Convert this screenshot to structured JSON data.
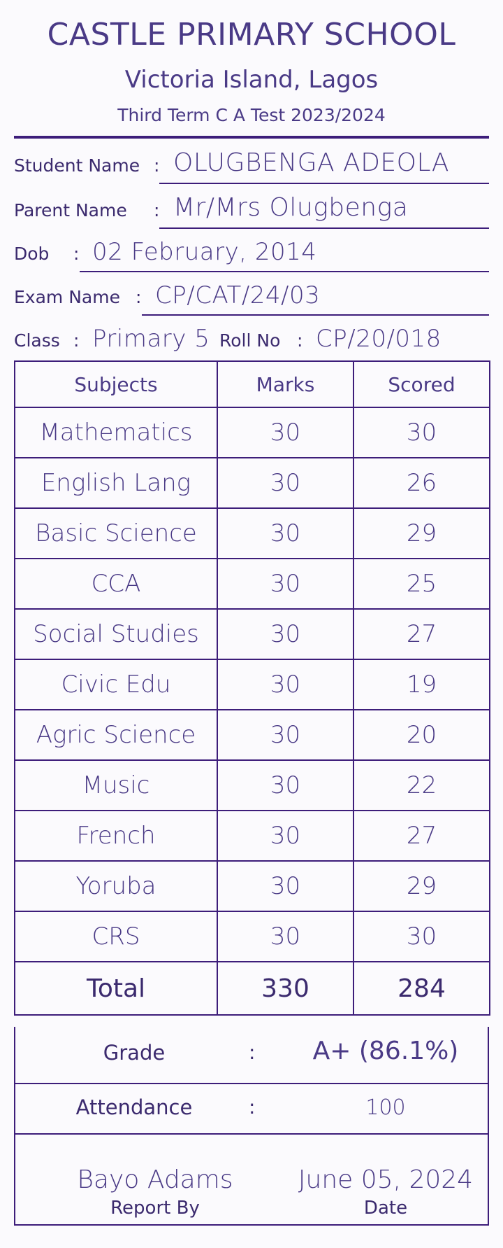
{
  "header": {
    "school_name": "CASTLE PRIMARY SCHOOL",
    "location": "Victoria Island, Lagos",
    "exam_title": "Third Term C A Test 2023/2024"
  },
  "student_info": {
    "student_name_label": "Student Name",
    "student_name": "OLUGBENGA ADEOLA",
    "parent_name_label": "Parent Name",
    "parent_name": "Mr/Mrs Olugbenga",
    "dob_label": "Dob",
    "dob": "02 February, 2014",
    "exam_name_label": "Exam Name",
    "exam_name": "CP/CAT/24/03",
    "class_label": "Class",
    "class_value": "Primary 5",
    "roll_no_label": "Roll No",
    "roll_no": "CP/20/018",
    "colon": ":"
  },
  "marks_table": {
    "headers": [
      "Subjects",
      "Marks",
      "Scored"
    ],
    "rows": [
      {
        "subject": "Mathematics",
        "marks": "30",
        "scored": "30"
      },
      {
        "subject": "English Lang",
        "marks": "30",
        "scored": "26"
      },
      {
        "subject": "Basic Science",
        "marks": "30",
        "scored": "29"
      },
      {
        "subject": "CCA",
        "marks": "30",
        "scored": "25"
      },
      {
        "subject": "Social Studies",
        "marks": "30",
        "scored": "27"
      },
      {
        "subject": "Civic Edu",
        "marks": "30",
        "scored": "19"
      },
      {
        "subject": "Agric Science",
        "marks": "30",
        "scored": "20"
      },
      {
        "subject": "Music",
        "marks": "30",
        "scored": "22"
      },
      {
        "subject": "French",
        "marks": "30",
        "scored": "27"
      },
      {
        "subject": "Yoruba",
        "marks": "30",
        "scored": "29"
      },
      {
        "subject": "CRS",
        "marks": "30",
        "scored": "30"
      }
    ],
    "total": {
      "label": "Total",
      "marks": "330",
      "scored": "284"
    }
  },
  "summary": {
    "grade_label": "Grade",
    "grade_value": "A+ (86.1%)",
    "attendance_label": "Attendance",
    "attendance_value": "100",
    "colon": ":"
  },
  "signature": {
    "report_by_name": "Bayo Adams",
    "report_by_label": "Report By",
    "date_value": "June 05, 2024",
    "date_label": "Date"
  },
  "colors": {
    "text": "#3b2a6e",
    "accent": "#4a3a86",
    "rule": "#3d1d7a",
    "background": "#fbfafd"
  }
}
